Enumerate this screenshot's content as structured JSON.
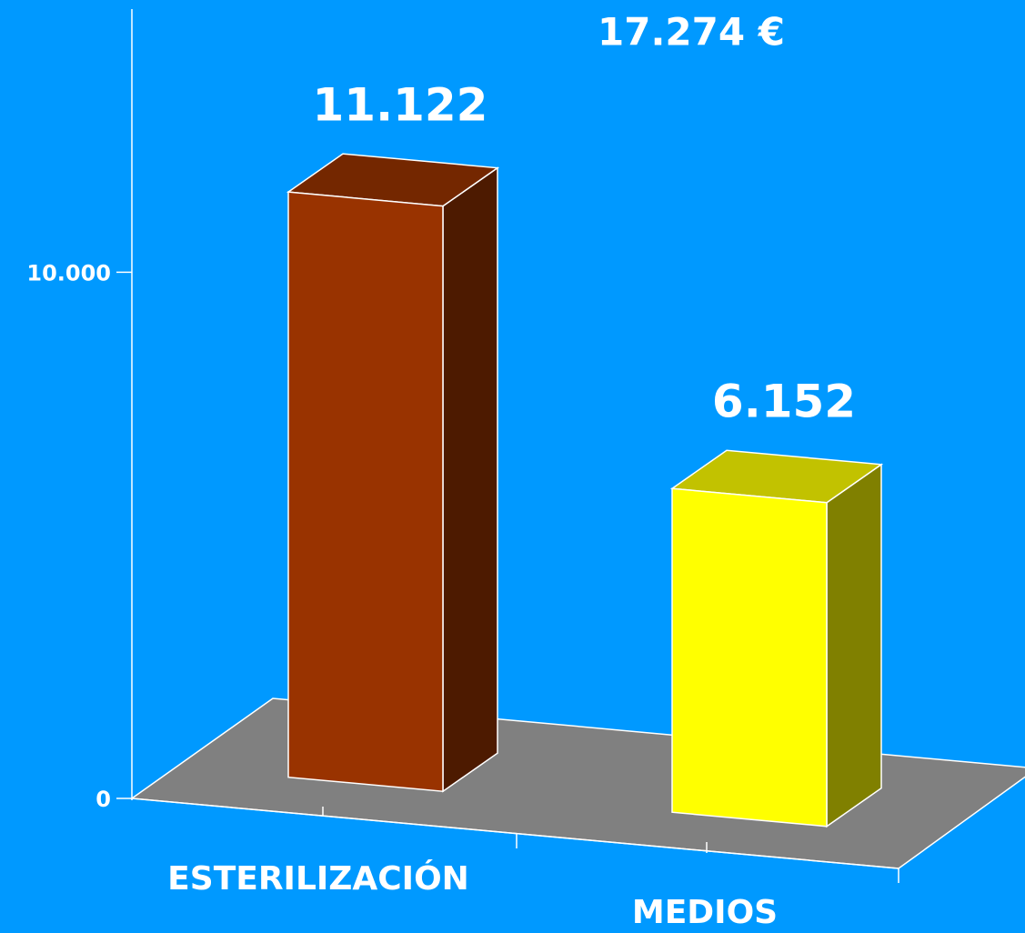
{
  "chart_data": {
    "type": "bar3d",
    "subtitle": "17.274 €",
    "categories": [
      "ESTERILIZACIÓN",
      "MEDIOS"
    ],
    "values": [
      11122,
      6152
    ],
    "value_labels": [
      "11.122",
      "6.152"
    ],
    "colors": [
      "#993300",
      "#ffff00"
    ],
    "ylim": [
      0,
      15000
    ],
    "yticks": [
      0,
      {
        "value": 10000,
        "label": "10.000"
      }
    ]
  }
}
